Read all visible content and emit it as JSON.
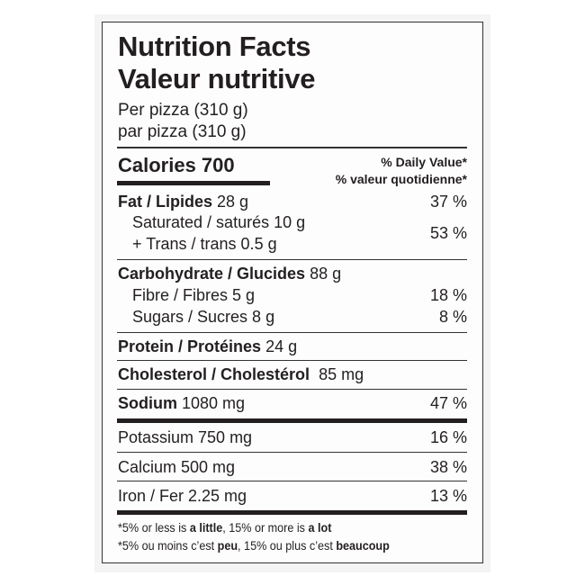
{
  "title_en": "Nutrition Facts",
  "title_fr": "Valeur nutritive",
  "serving_en": "Per pizza (310 g)",
  "serving_fr": "par pizza (310 g)",
  "calories": "Calories 700",
  "dv_en": "% Daily Value*",
  "dv_fr": "% valeur quotidienne*",
  "rows": [
    {
      "label": "Fat / Lipides",
      "amount": "28 g",
      "pct": "37 %"
    },
    {
      "label": "Saturated / saturés 10 g",
      "amount": "",
      "pct": "53 %"
    },
    {
      "label": "+ Trans / trans 0.5 g",
      "amount": "",
      "pct": ""
    },
    {
      "label": "Carbohydrate / Glucides",
      "amount": "88 g",
      "pct": ""
    },
    {
      "label": "Fibre / Fibres 5 g",
      "amount": "",
      "pct": "18 %"
    },
    {
      "label": "Sugars / Sucres 8 g",
      "amount": "",
      "pct": "8 %"
    },
    {
      "label": "Protein / Protéines",
      "amount": "24 g",
      "pct": ""
    },
    {
      "label": "Cholesterol / Cholestérol",
      "amount": "85 mg",
      "pct": ""
    },
    {
      "label": "Sodium",
      "amount": "1080 mg",
      "pct": "47 %"
    },
    {
      "label": "Potassium 750 mg",
      "amount": "",
      "pct": "16 %"
    },
    {
      "label": "Calcium 500 mg",
      "amount": "",
      "pct": "38 %"
    },
    {
      "label": "Iron / Fer 2.25 mg",
      "amount": "",
      "pct": "13 %"
    }
  ],
  "footnote_en": {
    "a": "*5% or less is ",
    "b": "a little",
    "c": ", 15% or more is ",
    "d": "a lot"
  },
  "footnote_fr": {
    "a": "*5% ou moins c’est ",
    "b": "peu",
    "c": ", 15% ou plus c’est ",
    "d": "beaucoup"
  }
}
